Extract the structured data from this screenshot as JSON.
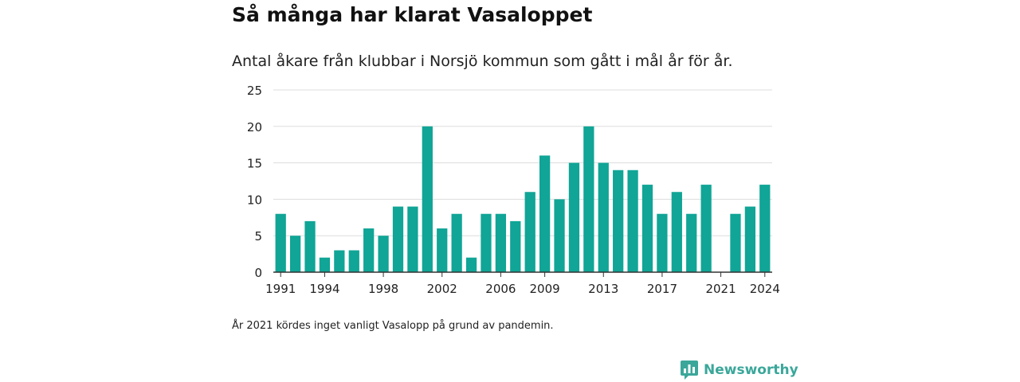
{
  "title": "Så många har klarat Vasaloppet",
  "subtitle": "Antal åkare från klubbar i Norsjö kommun som gått i mål år för år.",
  "note": "År 2021 kördes inget vanligt Vasalopp på grund av pandemin.",
  "brand": {
    "name": "Newsworthy",
    "icon": "newsworthy-logo-icon",
    "color": "#3aa79a"
  },
  "colors": {
    "bar": "#10a596",
    "grid": "#dddddd",
    "axis": "#333333"
  },
  "chart_data": {
    "type": "bar",
    "title": "",
    "xlabel": "",
    "ylabel": "",
    "ylim": [
      0,
      25
    ],
    "yticks": [
      0,
      5,
      10,
      15,
      20,
      25
    ],
    "grid": true,
    "xtick_labels": [
      "1991",
      "1994",
      "1998",
      "2002",
      "2006",
      "2009",
      "2013",
      "2017",
      "2021",
      "2024"
    ],
    "categories": [
      "1991",
      "1992",
      "1993",
      "1994",
      "1995",
      "1996",
      "1997",
      "1998",
      "1999",
      "2000",
      "2001",
      "2002",
      "2003",
      "2004",
      "2005",
      "2006",
      "2007",
      "2008",
      "2009",
      "2010",
      "2011",
      "2012",
      "2013",
      "2014",
      "2015",
      "2016",
      "2017",
      "2018",
      "2019",
      "2020",
      "2021",
      "2022",
      "2023",
      "2024"
    ],
    "values": [
      8,
      5,
      7,
      2,
      3,
      3,
      6,
      5,
      9,
      9,
      20,
      6,
      8,
      2,
      8,
      8,
      7,
      11,
      16,
      10,
      15,
      20,
      15,
      14,
      14,
      12,
      8,
      11,
      8,
      12,
      0,
      8,
      9,
      12
    ]
  }
}
